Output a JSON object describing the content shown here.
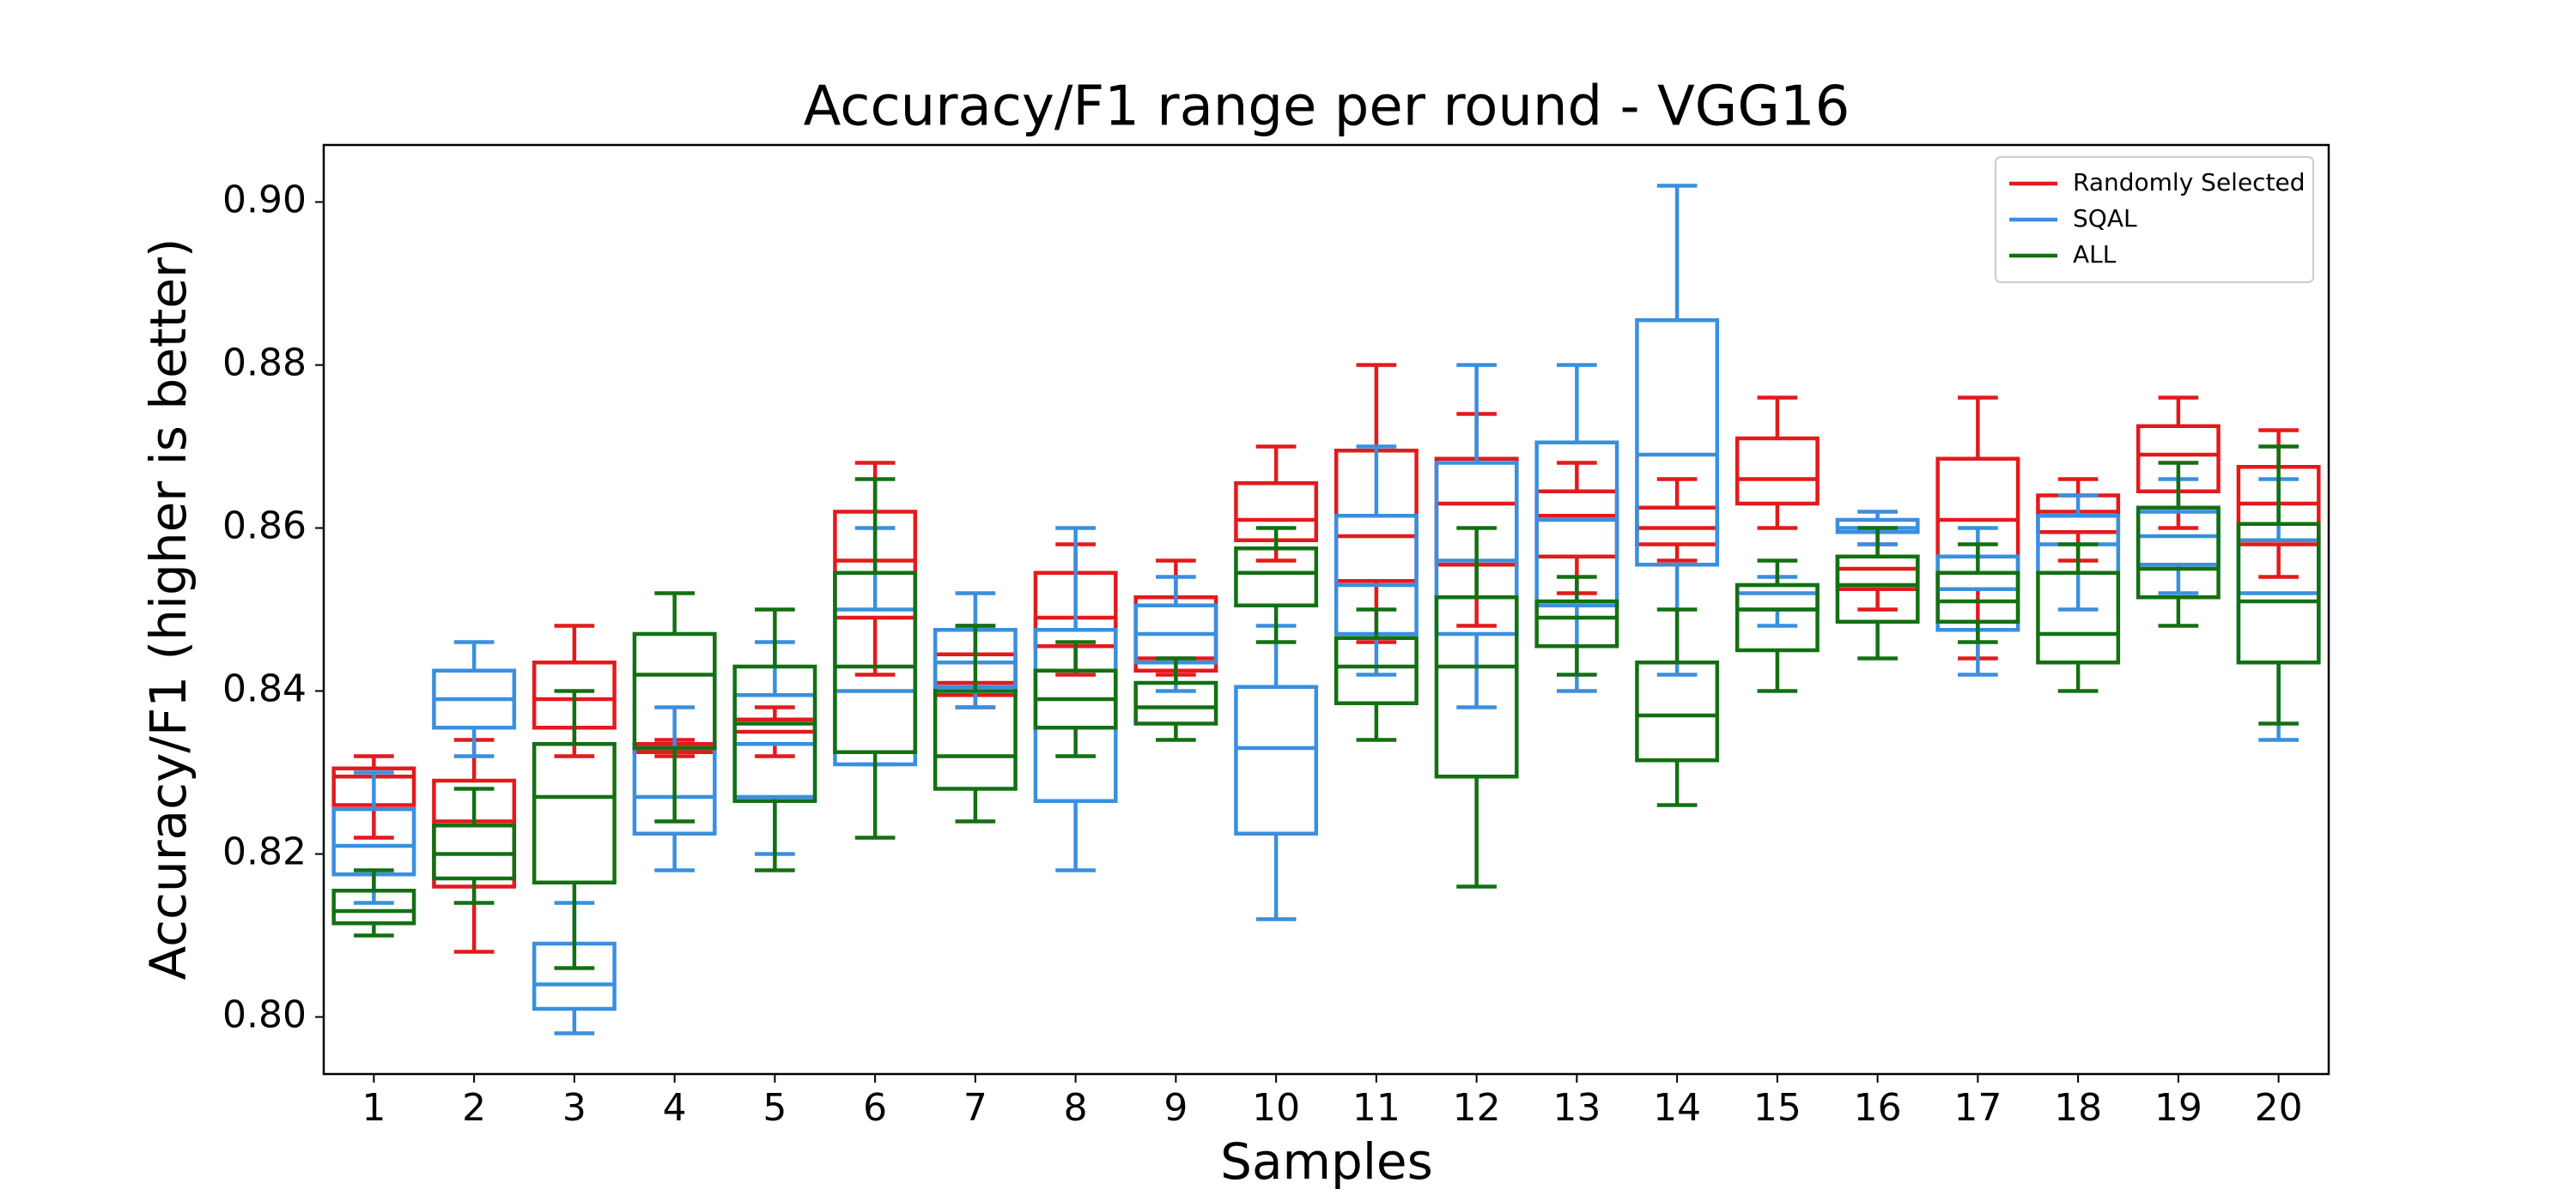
{
  "chart_data": {
    "type": "box",
    "title": "Accuracy/F1 range per round - VGG16",
    "x_label": "Samples",
    "y_label": "Accuracy/F1 (higher is better)",
    "categories": [
      "1",
      "2",
      "3",
      "4",
      "5",
      "6",
      "7",
      "8",
      "9",
      "10",
      "11",
      "12",
      "13",
      "14",
      "15",
      "16",
      "17",
      "18",
      "19",
      "20"
    ],
    "ylim": [
      0.793,
      0.907
    ],
    "yticks": [
      {
        "value": 0.8,
        "label": "0.80"
      },
      0.82,
      0.84,
      0.86,
      0.88,
      {
        "value": 0.9,
        "label": "0.90"
      }
    ],
    "legend": "upper right",
    "series": [
      {
        "name": "Randomly Selected",
        "color": "#e31a1c",
        "low": [
          0.822,
          0.808,
          0.832,
          0.832,
          0.832,
          0.842,
          0.838,
          0.842,
          0.842,
          0.856,
          0.846,
          0.848,
          0.852,
          0.856,
          0.86,
          0.85,
          0.844,
          0.856,
          0.86,
          0.854
        ],
        "q1": [
          0.826,
          0.816,
          0.8355,
          0.8325,
          0.8335,
          0.849,
          0.8395,
          0.8455,
          0.8425,
          0.8585,
          0.8535,
          0.8555,
          0.8565,
          0.858,
          0.863,
          0.8525,
          0.8525,
          0.8595,
          0.8645,
          0.858
        ],
        "median": [
          0.8295,
          0.824,
          0.839,
          0.833,
          0.835,
          0.856,
          0.841,
          0.849,
          0.844,
          0.861,
          0.859,
          0.863,
          0.8615,
          0.86,
          0.866,
          0.855,
          0.861,
          0.862,
          0.869,
          0.863
        ],
        "q3": [
          0.8305,
          0.829,
          0.8435,
          0.8335,
          0.8365,
          0.862,
          0.8445,
          0.8545,
          0.8515,
          0.8655,
          0.8695,
          0.8685,
          0.8645,
          0.8625,
          0.871,
          0.8565,
          0.8685,
          0.864,
          0.8725,
          0.8675
        ],
        "high": [
          0.832,
          0.834,
          0.848,
          0.834,
          0.838,
          0.868,
          0.848,
          0.858,
          0.856,
          0.87,
          0.88,
          0.874,
          0.868,
          0.866,
          0.876,
          0.858,
          0.876,
          0.866,
          0.876,
          0.872
        ]
      },
      {
        "name": "SQAL",
        "color": "#3a8fde",
        "low": [
          0.814,
          0.832,
          0.798,
          0.818,
          0.82,
          0.831,
          0.838,
          0.818,
          0.84,
          0.812,
          0.842,
          0.838,
          0.84,
          0.842,
          0.848,
          0.858,
          0.842,
          0.85,
          0.852,
          0.834
        ],
        "q1": [
          0.8175,
          0.8355,
          0.801,
          0.8225,
          0.827,
          0.831,
          0.8405,
          0.8265,
          0.8435,
          0.8225,
          0.847,
          0.847,
          0.8505,
          0.8555,
          0.85,
          0.8595,
          0.8475,
          0.8545,
          0.8555,
          0.8435
        ],
        "median": [
          0.821,
          0.839,
          0.804,
          0.827,
          0.8335,
          0.84,
          0.8435,
          0.8355,
          0.847,
          0.833,
          0.853,
          0.856,
          0.861,
          0.869,
          0.852,
          0.86,
          0.8525,
          0.858,
          0.859,
          0.852
        ],
        "q3": [
          0.8255,
          0.8425,
          0.809,
          0.833,
          0.8395,
          0.85,
          0.8475,
          0.8475,
          0.8505,
          0.8405,
          0.8615,
          0.868,
          0.8705,
          0.8855,
          0.853,
          0.861,
          0.8565,
          0.8615,
          0.862,
          0.8585
        ],
        "high": [
          0.83,
          0.846,
          0.814,
          0.838,
          0.846,
          0.86,
          0.852,
          0.86,
          0.854,
          0.848,
          0.87,
          0.88,
          0.88,
          0.902,
          0.854,
          0.862,
          0.86,
          0.864,
          0.866,
          0.866
        ]
      },
      {
        "name": "ALL",
        "color": "#137012",
        "low": [
          0.81,
          0.814,
          0.806,
          0.824,
          0.818,
          0.822,
          0.824,
          0.832,
          0.834,
          0.846,
          0.834,
          0.816,
          0.842,
          0.826,
          0.84,
          0.844,
          0.846,
          0.84,
          0.848,
          0.836
        ],
        "q1": [
          0.8115,
          0.817,
          0.8165,
          0.833,
          0.8265,
          0.8325,
          0.828,
          0.8355,
          0.836,
          0.8505,
          0.8385,
          0.8295,
          0.8455,
          0.8315,
          0.845,
          0.8485,
          0.8485,
          0.8435,
          0.8515,
          0.8435
        ],
        "median": [
          0.813,
          0.82,
          0.827,
          0.842,
          0.836,
          0.843,
          0.832,
          0.839,
          0.838,
          0.8545,
          0.843,
          0.843,
          0.849,
          0.837,
          0.85,
          0.853,
          0.851,
          0.847,
          0.855,
          0.851
        ],
        "q3": [
          0.8155,
          0.8235,
          0.8335,
          0.847,
          0.843,
          0.8545,
          0.84,
          0.8425,
          0.841,
          0.8575,
          0.8465,
          0.8515,
          0.851,
          0.8435,
          0.853,
          0.8565,
          0.8545,
          0.8545,
          0.8625,
          0.8605
        ],
        "high": [
          0.818,
          0.828,
          0.84,
          0.852,
          0.85,
          0.866,
          0.848,
          0.846,
          0.844,
          0.86,
          0.85,
          0.86,
          0.854,
          0.85,
          0.856,
          0.86,
          0.858,
          0.858,
          0.868,
          0.87
        ]
      }
    ]
  }
}
